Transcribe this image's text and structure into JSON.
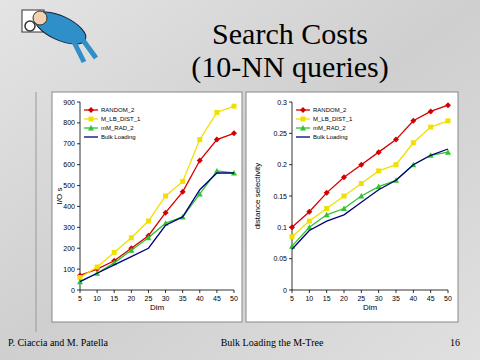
{
  "slide": {
    "title": [
      "Search Costs",
      "(10-NN queries)"
    ],
    "footer": {
      "authors": "P. Ciaccia and M. Patella",
      "topic": "Bulk Loading the M-Tree",
      "page": "16"
    }
  },
  "chart_data": [
    {
      "type": "line",
      "x_label": "Dim",
      "y_label": "I/O s",
      "x": [
        5,
        10,
        15,
        20,
        25,
        30,
        35,
        40,
        45,
        50
      ],
      "xlim": [
        5,
        50
      ],
      "xticks": [
        5,
        10,
        15,
        20,
        25,
        30,
        35,
        40,
        45,
        50
      ],
      "ylim": [
        0,
        900
      ],
      "yticks": [
        0,
        100,
        200,
        300,
        400,
        500,
        600,
        700,
        800,
        900
      ],
      "grid": false,
      "legend": "top-left",
      "series": [
        {
          "name": "RANDOM_2",
          "color": "#d40000",
          "marker": "diamond",
          "values": [
            70,
            100,
            140,
            200,
            260,
            370,
            470,
            620,
            720,
            750
          ]
        },
        {
          "name": "M_LB_DIST_1",
          "color": "#f0e000",
          "marker": "square",
          "values": [
            60,
            110,
            180,
            250,
            330,
            450,
            520,
            720,
            850,
            880
          ]
        },
        {
          "name": "mM_RAD_2",
          "color": "#2fc42f",
          "marker": "triangle",
          "values": [
            40,
            80,
            130,
            190,
            250,
            320,
            350,
            460,
            570,
            560
          ]
        },
        {
          "name": "Bulk Loading",
          "color": "#000080",
          "marker": "none",
          "values": [
            40,
            80,
            120,
            160,
            200,
            310,
            350,
            480,
            560,
            560
          ]
        }
      ]
    },
    {
      "type": "line",
      "x_label": "Dim",
      "y_label": "distance selectivity",
      "x": [
        5,
        10,
        15,
        20,
        25,
        30,
        35,
        40,
        45,
        50
      ],
      "xlim": [
        5,
        50
      ],
      "xticks": [
        5,
        10,
        15,
        20,
        25,
        30,
        35,
        40,
        45,
        50
      ],
      "ylim": [
        0,
        0.3
      ],
      "yticks": [
        0,
        0.05,
        0.1,
        0.15,
        0.2,
        0.25,
        0.3
      ],
      "grid": false,
      "legend": "top-left",
      "series": [
        {
          "name": "RANDOM_2",
          "color": "#d40000",
          "marker": "diamond",
          "values": [
            0.1,
            0.125,
            0.155,
            0.18,
            0.2,
            0.22,
            0.24,
            0.27,
            0.285,
            0.295
          ]
        },
        {
          "name": "M_LB_DIST_1",
          "color": "#f0e000",
          "marker": "square",
          "values": [
            0.085,
            0.11,
            0.13,
            0.15,
            0.17,
            0.19,
            0.2,
            0.235,
            0.26,
            0.27
          ]
        },
        {
          "name": "mM_RAD_2",
          "color": "#2fc42f",
          "marker": "triangle",
          "values": [
            0.07,
            0.1,
            0.12,
            0.13,
            0.15,
            0.165,
            0.175,
            0.2,
            0.215,
            0.22
          ]
        },
        {
          "name": "Bulk Loading",
          "color": "#000080",
          "marker": "none",
          "values": [
            0.065,
            0.095,
            0.11,
            0.12,
            0.14,
            0.16,
            0.175,
            0.2,
            0.215,
            0.225
          ]
        }
      ]
    }
  ]
}
